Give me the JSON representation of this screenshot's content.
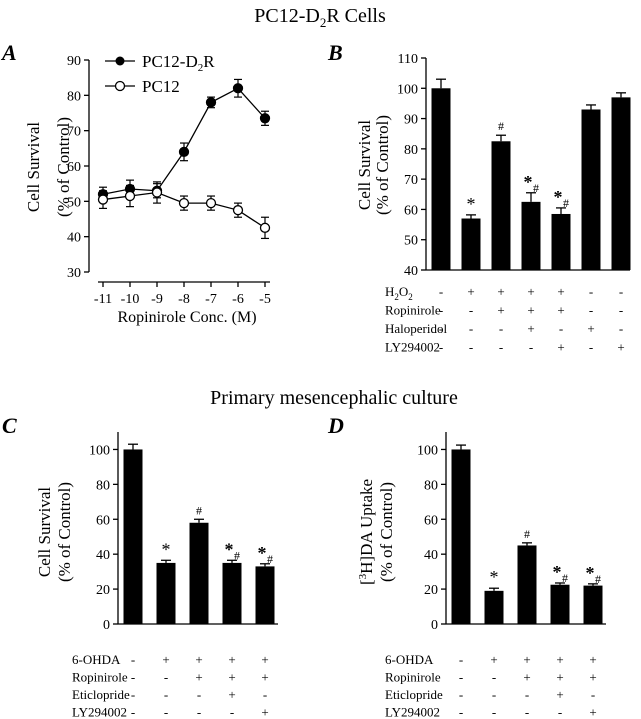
{
  "figure": {
    "top_title_main": "PC12-D",
    "top_title_sub": "2",
    "top_title_tail": "R Cells",
    "bottom_title": "Primary mesencephalic culture"
  },
  "chart_data": [
    {
      "panel": "A",
      "type": "line",
      "xlabel": "Ropinirole Conc. (M)",
      "ylabel_line1": "Cell Survival",
      "ylabel_line2": "(% of Control)",
      "x": [
        "-11",
        "-10",
        "-9",
        "-8",
        "-7",
        "-6",
        "-5"
      ],
      "ylim": [
        30,
        90
      ],
      "yticks": [
        "30",
        "40",
        "50",
        "60",
        "70",
        "80",
        "90"
      ],
      "legend_position": "top-left",
      "series": [
        {
          "name": "PC12-D2R",
          "name_main": "PC12-D",
          "name_sub": "2",
          "name_tail": "R",
          "marker": "filled",
          "values": [
            52,
            53.5,
            53,
            64,
            78,
            82,
            73.5
          ],
          "errors": [
            2,
            2.5,
            2,
            2.5,
            1.5,
            2.5,
            2
          ]
        },
        {
          "name": "PC12",
          "marker": "open",
          "values": [
            50.5,
            51.5,
            52.5,
            49.5,
            49.5,
            47.5,
            42.5
          ],
          "errors": [
            2.5,
            3,
            3,
            2,
            2,
            2,
            3
          ]
        }
      ]
    },
    {
      "panel": "B",
      "type": "bar",
      "ylabel_line1": "Cell Survival",
      "ylabel_line2": "(% of Control)",
      "ylim": [
        40,
        110
      ],
      "yticks": [
        "40",
        "50",
        "60",
        "70",
        "80",
        "90",
        "100",
        "110"
      ],
      "values": [
        100,
        57,
        82.5,
        62.5,
        58.5,
        93,
        97
      ],
      "errors": [
        3,
        1.2,
        2,
        3,
        2,
        1.5,
        1.5
      ],
      "annotations": [
        [],
        [
          "*"
        ],
        [
          "#"
        ],
        [
          "*",
          "#"
        ],
        [
          "*",
          "#"
        ],
        [],
        []
      ],
      "conditions": [
        {
          "label": "H2O2",
          "label_main": "H",
          "label_sub1": "2",
          "label_mid": "O",
          "label_sub2": "2",
          "signs": [
            "-",
            "+",
            "+",
            "+",
            "+",
            "-",
            "-"
          ]
        },
        {
          "label": "Ropinirole",
          "signs": [
            "-",
            "-",
            "+",
            "+",
            "+",
            "-",
            "-"
          ]
        },
        {
          "label": "Haloperidol",
          "signs": [
            "-",
            "-",
            "-",
            "+",
            "-",
            "+",
            "-"
          ]
        },
        {
          "label": "LY294002",
          "signs": [
            "-",
            "-",
            "-",
            "-",
            "+",
            "-",
            "+"
          ]
        }
      ]
    },
    {
      "panel": "C",
      "type": "bar",
      "ylabel_line1": "Cell Survival",
      "ylabel_line2": "(% of Control)",
      "ylim": [
        0,
        110
      ],
      "yticks": [
        "0",
        "20",
        "40",
        "60",
        "80",
        "100"
      ],
      "values": [
        100,
        35,
        58,
        35,
        33
      ],
      "errors": [
        3,
        1.5,
        2,
        1.5,
        1.5
      ],
      "annotations": [
        [],
        [
          "*"
        ],
        [
          "#"
        ],
        [
          "*",
          "#"
        ],
        [
          "*",
          "#"
        ]
      ],
      "conditions": [
        {
          "label": "6-OHDA",
          "signs": [
            "-",
            "+",
            "+",
            "+",
            "+"
          ]
        },
        {
          "label": "Ropinirole",
          "signs": [
            "-",
            "-",
            "+",
            "+",
            "+"
          ]
        },
        {
          "label": "Eticlopride",
          "signs": [
            "-",
            "-",
            "-",
            "+",
            "-"
          ]
        },
        {
          "label": "LY294002",
          "signs": [
            "-",
            "-",
            "-",
            "-",
            "+"
          ]
        }
      ]
    },
    {
      "panel": "D",
      "type": "bar",
      "ylabel_line1_pre": "[",
      "ylabel_line1_sup": "3",
      "ylabel_line1_post": "H]DA Uptake",
      "ylabel_line2": "(% of Control)",
      "ylim": [
        0,
        110
      ],
      "yticks": [
        "0",
        "20",
        "40",
        "60",
        "80",
        "100"
      ],
      "values": [
        100,
        19,
        45,
        22.5,
        22
      ],
      "errors": [
        2.5,
        1.5,
        1.5,
        1,
        1
      ],
      "annotations": [
        [],
        [
          "*"
        ],
        [
          "#"
        ],
        [
          "*",
          "#"
        ],
        [
          "*",
          "#"
        ]
      ],
      "conditions": [
        {
          "label": "6-OHDA",
          "signs": [
            "-",
            "+",
            "+",
            "+",
            "+"
          ]
        },
        {
          "label": "Ropinirole",
          "signs": [
            "-",
            "-",
            "+",
            "+",
            "+"
          ]
        },
        {
          "label": "Eticlopride",
          "signs": [
            "-",
            "-",
            "-",
            "+",
            "-"
          ]
        },
        {
          "label": "LY294002",
          "signs": [
            "-",
            "-",
            "-",
            "-",
            "+"
          ]
        }
      ]
    }
  ]
}
